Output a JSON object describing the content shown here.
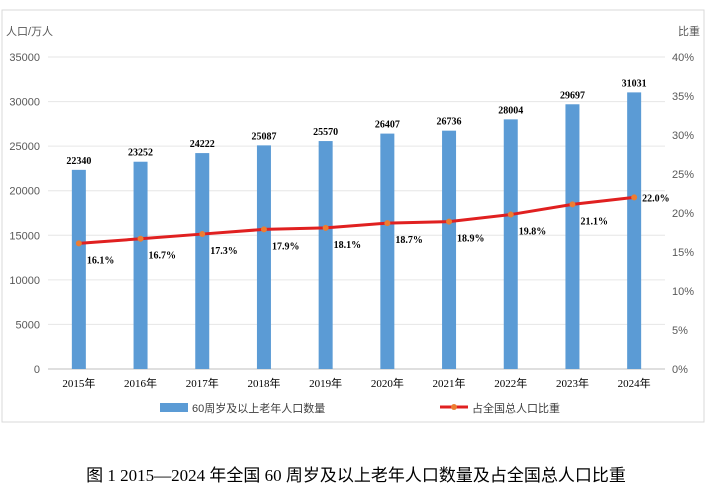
{
  "chart_data": {
    "type": "bar+line",
    "title": "图 1   2015—2024 年全国 60 周岁及以上老年人口数量及占全国总人口比重",
    "ylabel_left": "人口/万人",
    "ylabel_right": "比重",
    "categories": [
      "2015年",
      "2016年",
      "2017年",
      "2018年",
      "2019年",
      "2020年",
      "2021年",
      "2022年",
      "2023年",
      "2024年"
    ],
    "ylim_left": [
      0,
      35000
    ],
    "yticks_left": [
      "0",
      "5000",
      "10000",
      "15000",
      "20000",
      "25000",
      "30000",
      "35000"
    ],
    "ylim_right": [
      0,
      40
    ],
    "yticks_right": [
      "0%",
      "5%",
      "10%",
      "15%",
      "20%",
      "25%",
      "30%",
      "35%",
      "40%"
    ],
    "grid": true,
    "legend_placement": "bottom",
    "series": [
      {
        "name": "60周岁及以上老年人口数量",
        "type": "bar",
        "axis": "left",
        "color": "#5B9BD5",
        "values": [
          22340,
          23252,
          24222,
          25087,
          25570,
          26407,
          26736,
          28004,
          29697,
          31031
        ],
        "labels": [
          "22340",
          "23252",
          "24222",
          "25087",
          "25570",
          "26407",
          "26736",
          "28004",
          "29697",
          "31031"
        ]
      },
      {
        "name": "占全国总人口比重",
        "type": "line",
        "axis": "right",
        "color": "#E02020",
        "marker_color": "#ED7D31",
        "values": [
          16.1,
          16.7,
          17.3,
          17.9,
          18.1,
          18.7,
          18.9,
          19.8,
          21.1,
          22.0
        ],
        "labels": [
          "16.1%",
          "16.7%",
          "17.3%",
          "17.9%",
          "18.1%",
          "18.7%",
          "18.9%",
          "19.8%",
          "21.1%",
          "22.0%"
        ]
      }
    ]
  }
}
